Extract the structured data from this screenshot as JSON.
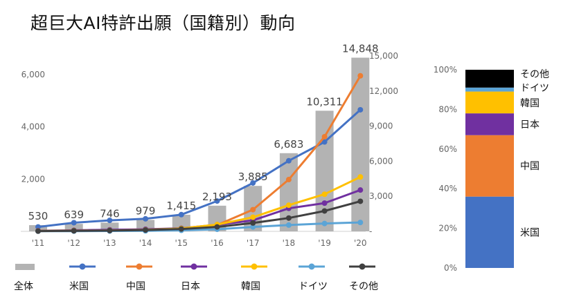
{
  "title": "超巨大AI特許出願（国籍別）動向",
  "chart_data": [
    {
      "type": "bar+line",
      "title": "超巨大AI特許出願（国籍別）動向",
      "categories": [
        "'11",
        "'12",
        "'13",
        "'14",
        "'15",
        "'16",
        "'17",
        "'18",
        "'19",
        "'20"
      ],
      "bar_series": {
        "name": "全体",
        "axis": "right",
        "color": "#b3b3b3",
        "values": [
          530,
          639,
          746,
          979,
          1415,
          2193,
          3885,
          6683,
          10311,
          14848
        ],
        "labels": [
          "530",
          "639",
          "746",
          "979",
          "1,415",
          "2,193",
          "3,885",
          "6,683",
          "10,311",
          "14,848"
        ]
      },
      "line_series": [
        {
          "name": "米国",
          "axis": "left",
          "color": "#4472c4",
          "values": [
            170,
            330,
            420,
            480,
            640,
            1160,
            1850,
            2700,
            3420,
            4650
          ]
        },
        {
          "name": "中国",
          "axis": "left",
          "color": "#ed7d31",
          "values": [
            10,
            15,
            25,
            40,
            90,
            240,
            830,
            1980,
            3620,
            5950
          ]
        },
        {
          "name": "日本",
          "axis": "left",
          "color": "#7030a0",
          "values": [
            25,
            40,
            60,
            80,
            120,
            250,
            420,
            880,
            1080,
            1580
          ]
        },
        {
          "name": "韓国",
          "axis": "left",
          "color": "#ffc000",
          "values": [
            15,
            25,
            35,
            55,
            110,
            260,
            540,
            1000,
            1420,
            2080
          ]
        },
        {
          "name": "ドイツ",
          "axis": "left",
          "color": "#5ba4d6",
          "values": [
            5,
            8,
            12,
            20,
            40,
            80,
            170,
            240,
            300,
            340
          ]
        },
        {
          "name": "その他",
          "axis": "left",
          "color": "#404040",
          "values": [
            10,
            20,
            30,
            50,
            90,
            170,
            320,
            510,
            780,
            1150
          ]
        }
      ],
      "y_left": {
        "min": 0,
        "max": 7000,
        "ticks": [
          0,
          2000,
          4000,
          6000
        ],
        "tick_labels": [
          "-",
          "2,000",
          "4,000",
          "6,000"
        ]
      },
      "y_right": {
        "min": 0,
        "max": 16000,
        "ticks": [
          0,
          3000,
          6000,
          9000,
          12000,
          15000
        ],
        "tick_labels": [
          "-",
          "3,000",
          "6,000",
          "9,000",
          "12,000",
          "15,000"
        ]
      },
      "legend": [
        "全体",
        "米国",
        "中国",
        "日本",
        "韓国",
        "ドイツ",
        "その他"
      ],
      "legend_position": "bottom"
    },
    {
      "type": "stacked-bar-100",
      "axis": {
        "min": 0,
        "max": 100,
        "ticks": [
          0,
          20,
          40,
          60,
          80,
          100
        ],
        "tick_labels": [
          "0%",
          "20%",
          "40%",
          "60%",
          "80%",
          "100%"
        ]
      },
      "segments": [
        {
          "name": "米国",
          "value": 36,
          "color": "#4472c4"
        },
        {
          "name": "中国",
          "value": 31,
          "color": "#ed7d31"
        },
        {
          "name": "日本",
          "value": 11,
          "color": "#7030a0"
        },
        {
          "name": "韓国",
          "value": 11,
          "color": "#ffc000"
        },
        {
          "name": "ドイツ",
          "value": 2,
          "color": "#5ba4d6"
        },
        {
          "name": "その他",
          "value": 9,
          "color": "#000000"
        }
      ]
    }
  ]
}
